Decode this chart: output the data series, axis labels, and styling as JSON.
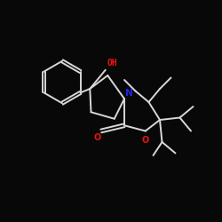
{
  "bg_color": "#080808",
  "bond_color": "#d8d8d8",
  "nitrogen_color": "#2222ee",
  "oxygen_color": "#ee1111",
  "label_OH": "OH",
  "label_N": "N",
  "label_O1": "O",
  "label_O2": "O",
  "figsize": [
    2.5,
    2.5
  ],
  "dpi": 100,
  "bond_lw": 1.4
}
